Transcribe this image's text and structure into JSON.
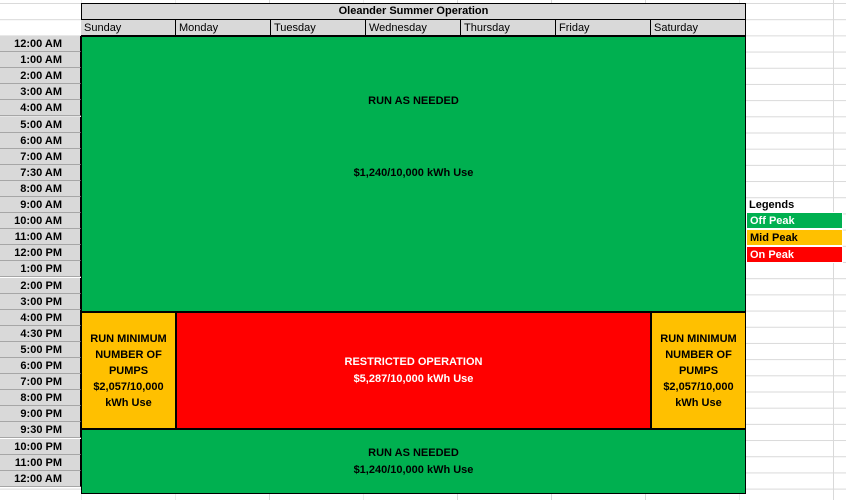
{
  "title": "Oleander Summer Operation",
  "days": [
    "Sunday",
    "Monday",
    "Tuesday",
    "Wednesday",
    "Thursday",
    "Friday",
    "Saturday"
  ],
  "times": [
    "12:00 AM",
    "1:00 AM",
    "2:00 AM",
    "3:00 AM",
    "4:00 AM",
    "5:00 AM",
    "6:00 AM",
    "7:00 AM",
    "7:30 AM",
    "8:00 AM",
    "9:00 AM",
    "10:00 AM",
    "11:00 AM",
    "12:00 PM",
    "1:00 PM",
    "2:00 PM",
    "3:00 PM",
    "4:00 PM",
    "4:30 PM",
    "5:00 PM",
    "6:00 PM",
    "7:00 PM",
    "8:00 PM",
    "9:00 PM",
    "9:30 PM",
    "10:00 PM",
    "11:00 PM",
    "12:00 AM"
  ],
  "blocks": {
    "top_green": {
      "line1": "RUN AS NEEDED",
      "line2": "$1,240/10,000 kWh Use"
    },
    "sun_orange": {
      "line1": "RUN MINIMUM",
      "line2": "NUMBER OF",
      "line3": "PUMPS",
      "line4": "$2,057/10,000",
      "line5": "kWh Use"
    },
    "red": {
      "line1": "RESTRICTED OPERATION",
      "line2": "$5,287/10,000 kWh Use"
    },
    "sat_orange": {
      "line1": "RUN MINIMUM",
      "line2": "NUMBER OF",
      "line3": "PUMPS",
      "line4": "$2,057/10,000",
      "line5": "kWh Use"
    },
    "bottom_green": {
      "line1": "RUN AS NEEDED",
      "line2": "$1,240/10,000 kWh Use"
    }
  },
  "legend": {
    "title": "Legends",
    "items": [
      {
        "label": "Off Peak",
        "color": "#00b050"
      },
      {
        "label": "Mid Peak",
        "color": "#ffc000"
      },
      {
        "label": "On Peak",
        "color": "#ff0000"
      }
    ]
  }
}
